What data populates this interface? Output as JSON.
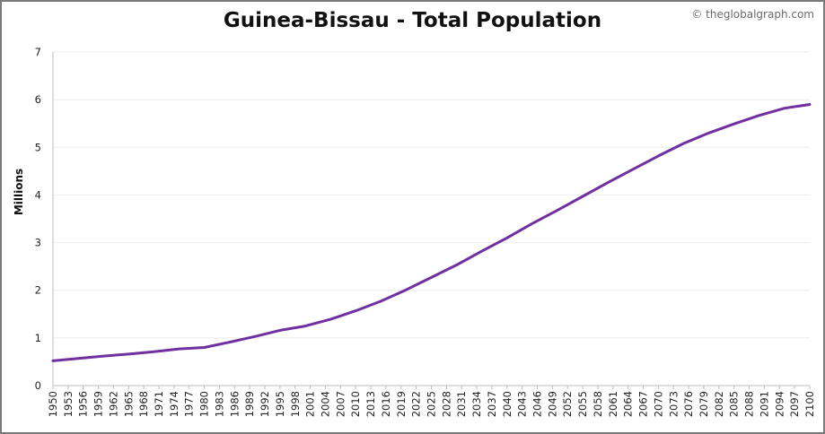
{
  "chart_data": {
    "type": "line",
    "title": "Guinea-Bissau - Total Population",
    "credit": "© theglobalgraph.com",
    "ylabel": "Millions",
    "xlabel": "",
    "ylim": [
      0,
      7
    ],
    "yticks": [
      0,
      1,
      2,
      3,
      4,
      5,
      6,
      7
    ],
    "xlim": [
      1950,
      2100
    ],
    "xticks": [
      1950,
      1953,
      1956,
      1959,
      1962,
      1965,
      1968,
      1971,
      1974,
      1977,
      1980,
      1983,
      1986,
      1989,
      1992,
      1995,
      1998,
      2001,
      2004,
      2007,
      2010,
      2013,
      2016,
      2019,
      2022,
      2025,
      2028,
      2031,
      2034,
      2037,
      2040,
      2043,
      2046,
      2049,
      2052,
      2055,
      2058,
      2061,
      2064,
      2067,
      2070,
      2073,
      2076,
      2079,
      2082,
      2085,
      2088,
      2091,
      2094,
      2097,
      2100
    ],
    "grid": true,
    "line_color": "#7030a0",
    "series": [
      {
        "name": "",
        "x": [
          1950,
          1955,
          1960,
          1965,
          1970,
          1975,
          1980,
          1985,
          1990,
          1995,
          2000,
          2005,
          2010,
          2015,
          2020,
          2025,
          2030,
          2035,
          2040,
          2045,
          2050,
          2055,
          2060,
          2065,
          2070,
          2075,
          2080,
          2085,
          2090,
          2095,
          2100
        ],
        "values": [
          0.52,
          0.57,
          0.62,
          0.66,
          0.71,
          0.77,
          0.8,
          0.91,
          1.03,
          1.16,
          1.25,
          1.39,
          1.57,
          1.77,
          2.01,
          2.27,
          2.53,
          2.82,
          3.1,
          3.4,
          3.68,
          3.97,
          4.26,
          4.54,
          4.82,
          5.08,
          5.3,
          5.49,
          5.67,
          5.82,
          5.9
        ]
      }
    ]
  }
}
